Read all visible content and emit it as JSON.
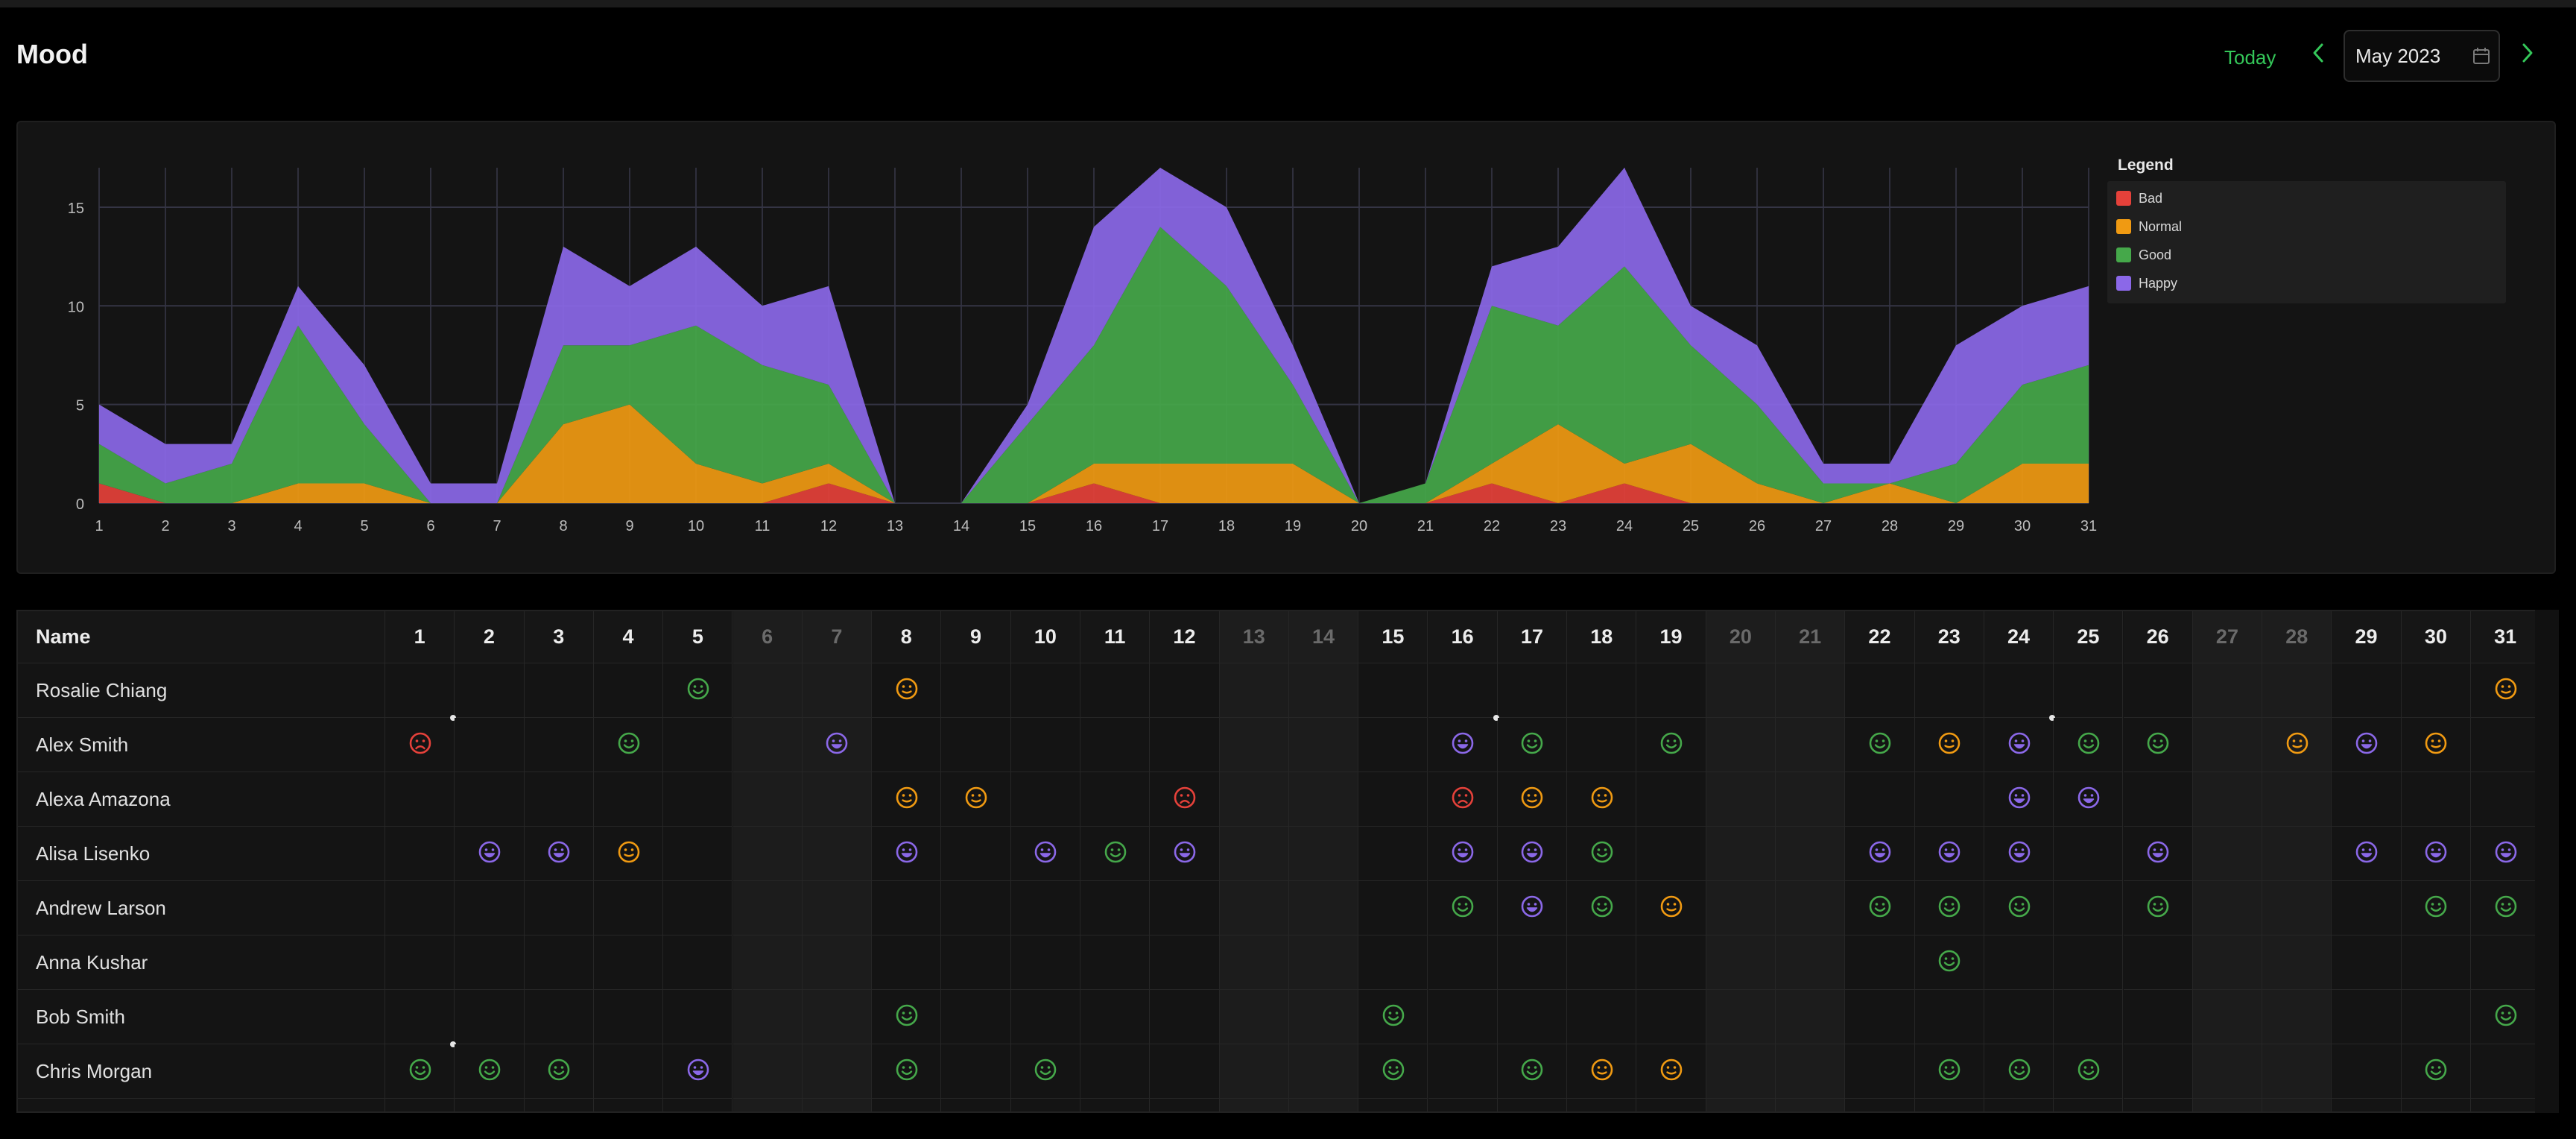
{
  "header": {
    "title": "Mood",
    "today_label": "Today",
    "month_value": "May 2023"
  },
  "colors": {
    "accent": "#34c759",
    "bad": "#e5413a",
    "normal": "#f09a12",
    "good": "#45a84a",
    "happy": "#8b68e8"
  },
  "legend": {
    "title": "Legend",
    "items": [
      {
        "label": "Bad",
        "color": "#e5413a"
      },
      {
        "label": "Normal",
        "color": "#f09a12"
      },
      {
        "label": "Good",
        "color": "#45a84a"
      },
      {
        "label": "Happy",
        "color": "#8b68e8"
      }
    ]
  },
  "chart_data": {
    "type": "area",
    "stacked": true,
    "x": [
      1,
      2,
      3,
      4,
      5,
      6,
      7,
      8,
      9,
      10,
      11,
      12,
      13,
      14,
      15,
      16,
      17,
      18,
      19,
      20,
      21,
      22,
      23,
      24,
      25,
      26,
      27,
      28,
      29,
      30,
      31
    ],
    "ylim": [
      0,
      17
    ],
    "yticks": [
      0,
      5,
      10,
      15
    ],
    "grid": true,
    "legend_position": "right",
    "series": [
      {
        "name": "Bad",
        "values": [
          1,
          0,
          0,
          0,
          0,
          0,
          0,
          0,
          0,
          0,
          0,
          1,
          0,
          0,
          0,
          1,
          0,
          0,
          0,
          0,
          0,
          1,
          0,
          1,
          0,
          0,
          0,
          0,
          0,
          0,
          0
        ]
      },
      {
        "name": "Normal",
        "values": [
          0,
          0,
          0,
          1,
          1,
          0,
          0,
          4,
          5,
          2,
          1,
          1,
          0,
          0,
          0,
          1,
          2,
          2,
          2,
          0,
          0,
          1,
          4,
          1,
          3,
          1,
          0,
          1,
          0,
          2,
          2
        ]
      },
      {
        "name": "Good",
        "values": [
          2,
          1,
          2,
          8,
          3,
          0,
          0,
          4,
          3,
          7,
          6,
          4,
          0,
          0,
          4,
          6,
          12,
          9,
          4,
          0,
          1,
          8,
          5,
          10,
          5,
          4,
          1,
          0,
          2,
          4,
          5
        ]
      },
      {
        "name": "Happy",
        "values": [
          2,
          2,
          1,
          2,
          3,
          1,
          1,
          5,
          3,
          4,
          3,
          5,
          0,
          0,
          1,
          6,
          3,
          4,
          2,
          0,
          0,
          2,
          4,
          5,
          2,
          3,
          1,
          1,
          6,
          4,
          4
        ]
      }
    ]
  },
  "grid": {
    "name_header": "Name",
    "days": [
      "1",
      "2",
      "3",
      "4",
      "5",
      "6",
      "7",
      "8",
      "9",
      "10",
      "11",
      "12",
      "13",
      "14",
      "15",
      "16",
      "17",
      "18",
      "19",
      "20",
      "21",
      "22",
      "23",
      "24",
      "25",
      "26",
      "27",
      "28",
      "29",
      "30",
      "31"
    ],
    "weekends": [
      6,
      7,
      13,
      14,
      20,
      21,
      27,
      28
    ],
    "rows": [
      {
        "name": "Rosalie Chiang",
        "moods": {
          "5": "good",
          "8": "normal",
          "31": "normal"
        },
        "dots": []
      },
      {
        "name": "Alex Smith",
        "moods": {
          "1": "bad",
          "4": "good",
          "7": "happy",
          "16": "happy",
          "17": "good",
          "19": "good",
          "22": "good",
          "23": "normal",
          "24": "happy",
          "25": "good",
          "26": "good",
          "28": "normal",
          "29": "happy",
          "30": "normal"
        },
        "dots": [
          1,
          16,
          24
        ]
      },
      {
        "name": "Alexa Amazona",
        "moods": {
          "8": "normal",
          "9": "normal",
          "12": "bad",
          "16": "bad",
          "17": "normal",
          "18": "normal",
          "24": "happy",
          "25": "happy"
        },
        "dots": []
      },
      {
        "name": "Alisa Lisenko",
        "moods": {
          "2": "happy",
          "3": "happy",
          "4": "normal",
          "8": "happy",
          "10": "happy",
          "11": "good",
          "12": "happy",
          "16": "happy",
          "17": "happy",
          "18": "good",
          "22": "happy",
          "23": "happy",
          "24": "happy",
          "26": "happy",
          "29": "happy",
          "30": "happy",
          "31": "happy"
        },
        "dots": []
      },
      {
        "name": "Andrew Larson",
        "moods": {
          "16": "good",
          "17": "happy",
          "18": "good",
          "19": "normal",
          "22": "good",
          "23": "good",
          "24": "good",
          "26": "good",
          "30": "good",
          "31": "good"
        },
        "dots": []
      },
      {
        "name": "Anna Kushar",
        "moods": {
          "23": "good"
        },
        "dots": []
      },
      {
        "name": "Bob Smith",
        "moods": {
          "8": "good",
          "15": "good",
          "31": "good"
        },
        "dots": []
      },
      {
        "name": "Chris Morgan",
        "moods": {
          "1": "good",
          "2": "good",
          "3": "good",
          "5": "happy",
          "8": "good",
          "10": "good",
          "15": "good",
          "17": "good",
          "18": "normal",
          "19": "normal",
          "23": "good",
          "24": "good",
          "25": "good",
          "30": "good"
        },
        "dots": [
          1
        ]
      }
    ]
  }
}
